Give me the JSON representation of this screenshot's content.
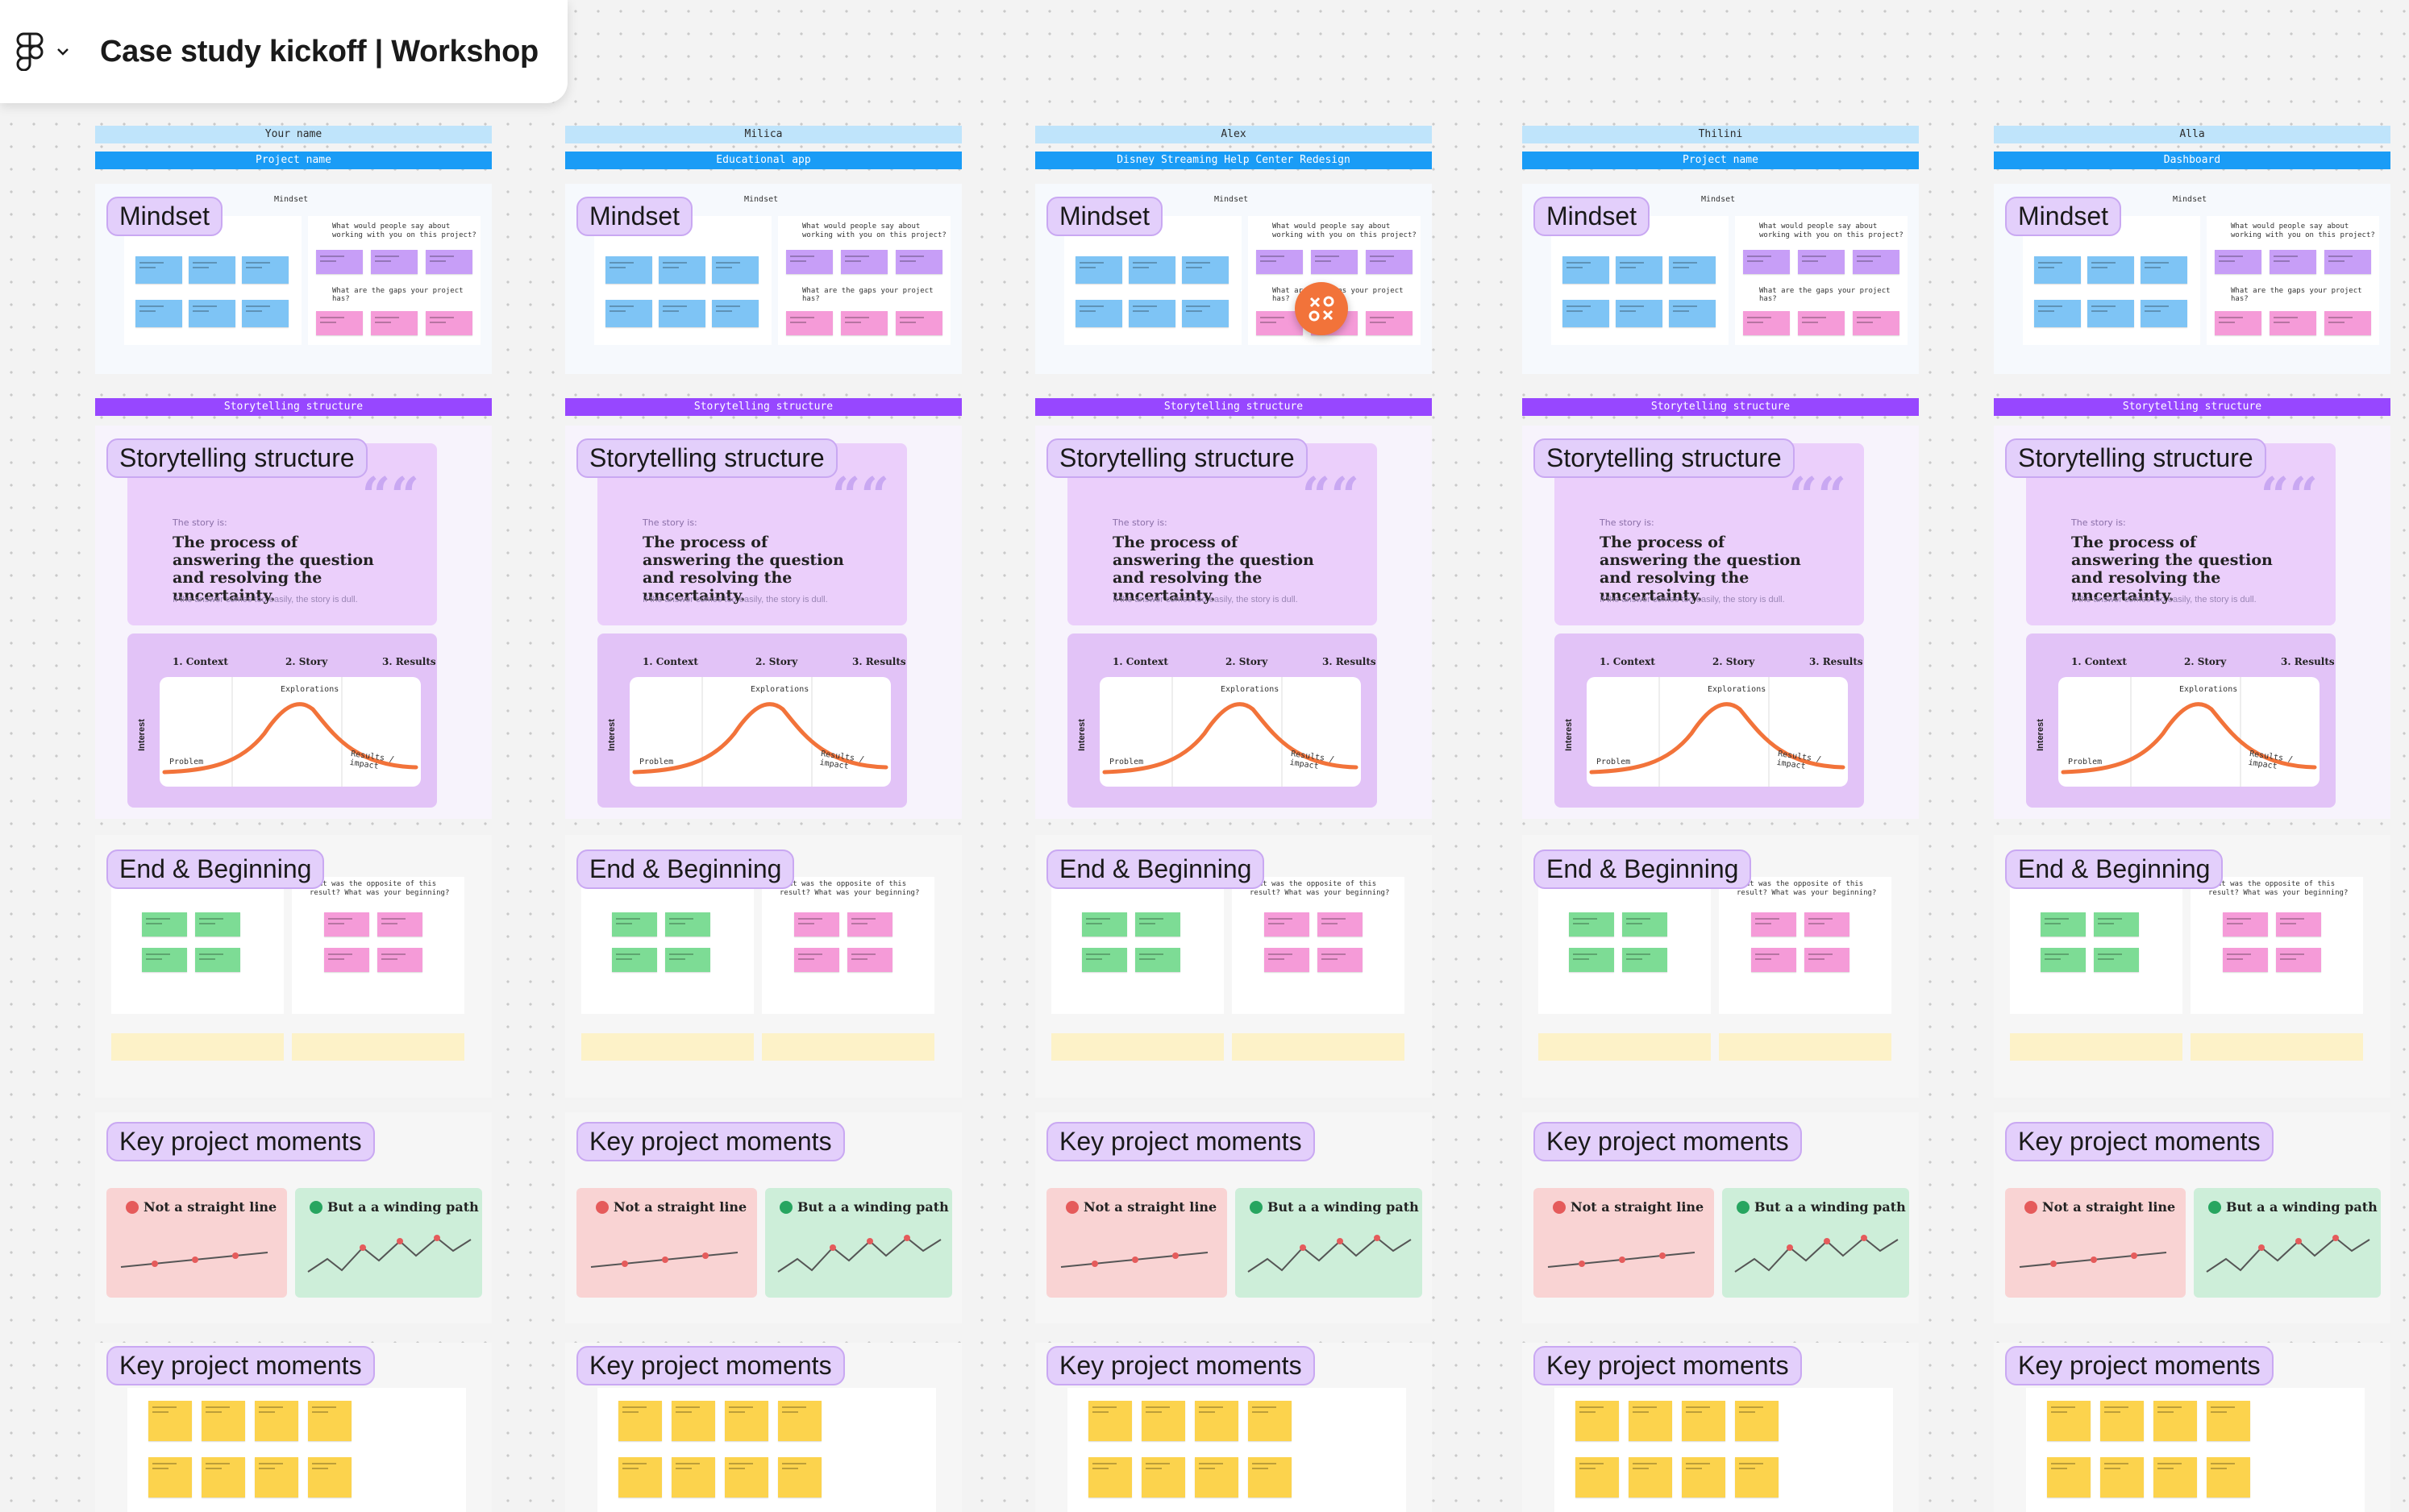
{
  "app": {
    "title": "Case study kickoff | Workshop",
    "menu_icon": "figma-logo-icon",
    "menu_chevron": "chevron-down-icon"
  },
  "labels": {
    "mindset": "Mindset",
    "mindset_small": "Mindset",
    "storytelling_band": "Storytelling structure",
    "storytelling": "Storytelling structure",
    "story_is": "The story is:",
    "story_quote": "The process of answering the question and resolving the uncertainty.",
    "story_sub": "If the answer comes too easily, the story is dull.",
    "phase_context": "1. Context",
    "phase_story": "2. Story",
    "phase_results": "3. Results",
    "interest": "Interest",
    "curve_problem": "Problem",
    "curve_explorations": "Explorations",
    "curve_results": "Results / impact",
    "end_beginning": "End & Beginning",
    "key_moments": "Key project moments",
    "not_straight": "Not a straight line",
    "winding_path": "But a a winding path",
    "q_people": "What would people say about working with you on this project?",
    "q_gaps": "What are the gaps your project has?",
    "q_opposite": "What was the opposite of this result? What was your beginning?"
  },
  "columns": [
    {
      "person": "Your name",
      "project": "Project name"
    },
    {
      "person": "Milica",
      "project": "Educational app"
    },
    {
      "person": "Alex",
      "project": "Disney Streaming Help Center Redesign"
    },
    {
      "person": "Thilini",
      "project": "Project name"
    },
    {
      "person": "Alla",
      "project": "Dashboard"
    }
  ],
  "colors": {
    "accent_blue": "#1a9cf6",
    "light_blue": "#bfe4fb",
    "purple": "#9747ff",
    "chip_purple": "#e3cffb",
    "curve_orange": "#f2733a",
    "sticky_blue": "#7ec4f5",
    "sticky_pink": "#f59bd8",
    "sticky_purple": "#c79ef7",
    "sticky_green": "#7ddc95",
    "sticky_yellow": "#fcd34d"
  }
}
